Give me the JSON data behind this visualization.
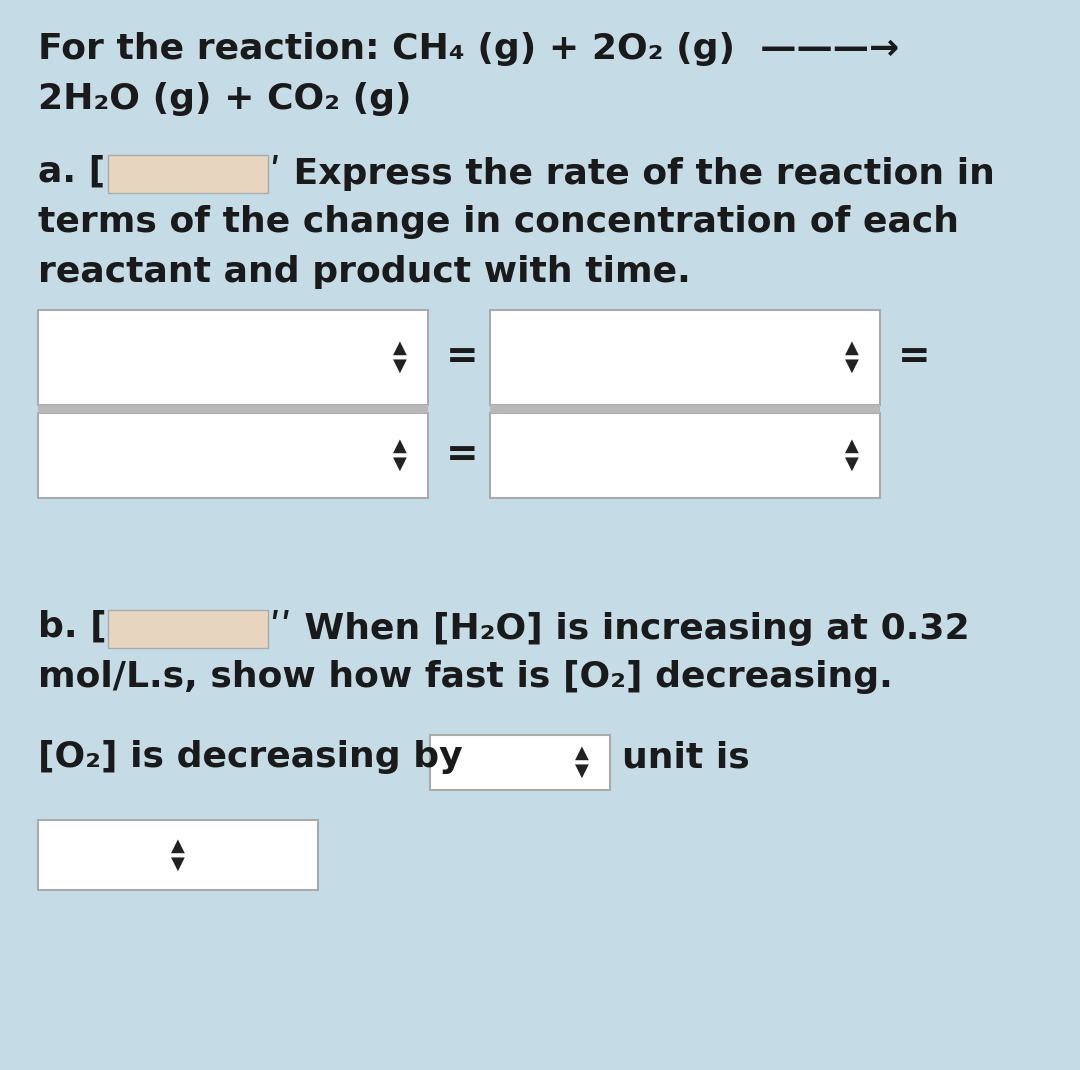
{
  "background_color": "#c5dce6",
  "box_fill": "#ffffff",
  "box_edge": "#aaaaaa",
  "divider_color": "#aaaaaa",
  "text_color": "#1a1a1a",
  "spinner_color": "#222222",
  "icon_fill": "#e8d5c0",
  "icon_edge": "#aaaaaa",
  "title_line1": "For the reaction: CH₄ (g) + 2O₂ (g)  ———→",
  "title_line2": "2H₂O (g) + CO₂ (g)",
  "part_a_text1": " Express the rate of the reaction in",
  "part_a_text2": "terms of the change in concentration of each",
  "part_a_text3": "reactant and product with time.",
  "part_b_text1": " ““ When [H₂O] is increasing at 0.32",
  "part_b_text2": "mol/L.s, show how fast is [O₂] decreasing.",
  "part_b3_text": "[O₂] is decreasing by",
  "unit_is": "unit is",
  "font_size": 26,
  "title_fontsize": 26
}
